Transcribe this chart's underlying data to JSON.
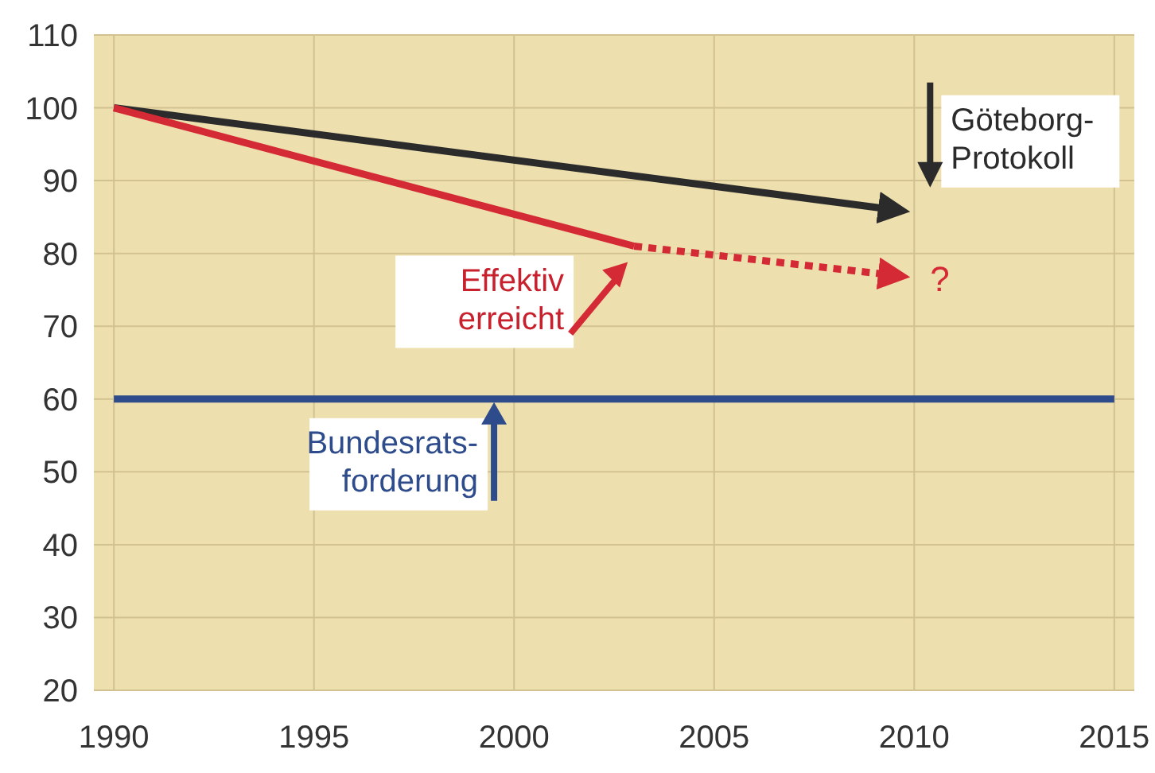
{
  "chart_data": {
    "type": "line",
    "xlim": [
      1989.5,
      2015.5
    ],
    "ylim": [
      20,
      110
    ],
    "xticks": [
      1990,
      1995,
      2000,
      2005,
      2010,
      2015
    ],
    "yticks": [
      20,
      30,
      40,
      50,
      60,
      70,
      80,
      90,
      100,
      110
    ],
    "grid": true,
    "marker": "none",
    "line_style": "solid",
    "series": [
      {
        "color": "#2b2b2b",
        "x": [
          1990,
          2009.5
        ],
        "values": [
          100,
          86
        ]
      },
      {
        "color": "#d42a35",
        "x": [
          1990,
          2003
        ],
        "values": [
          100,
          81
        ]
      },
      {
        "color": "#d42a35",
        "x": [
          2003,
          2009.5
        ],
        "values": [
          81,
          77
        ],
        "line_style": "dotted"
      },
      {
        "color": "#2e4b8c",
        "x": [
          1990,
          2015
        ],
        "values": [
          60,
          60
        ]
      }
    ],
    "annotations": [
      "Göteborg-Protokoll",
      {
        "text": "Effektiv erreicht",
        "x": 2003,
        "y": 81
      },
      "?",
      {
        "text": "Bundesrats-forderung",
        "x": 1999.5,
        "y": 60
      }
    ]
  }
}
